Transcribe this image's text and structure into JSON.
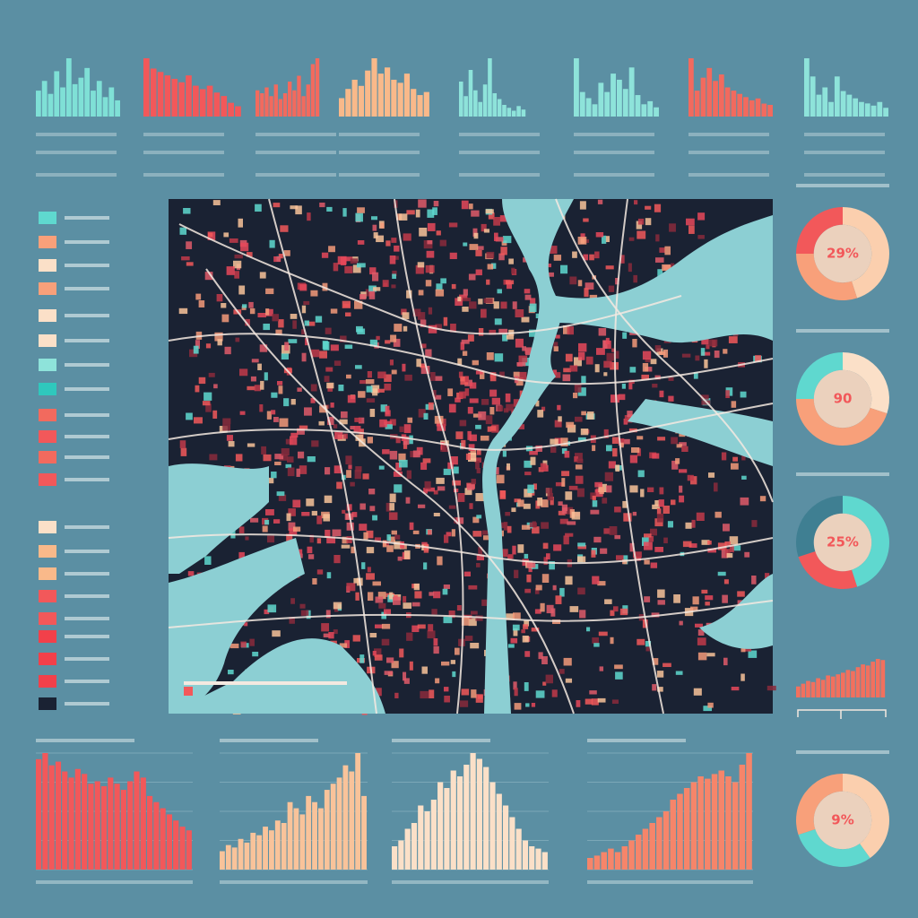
{
  "chart_data": [
    {
      "type": "bar",
      "color": "#7fe0d6",
      "values": [
        40,
        55,
        35,
        70,
        45,
        90,
        50,
        60,
        75,
        40,
        55,
        30,
        45,
        25
      ]
    },
    {
      "type": "bar",
      "color": "#f2585a",
      "values": [
        85,
        70,
        65,
        60,
        55,
        50,
        60,
        45,
        40,
        45,
        35,
        30,
        20,
        15
      ]
    },
    {
      "type": "bar",
      "color": "#f26a5e",
      "values": [
        45,
        40,
        50,
        35,
        55,
        30,
        40,
        60,
        45,
        70,
        35,
        55,
        90,
        100
      ]
    },
    {
      "type": "bar",
      "color": "#f9b98a",
      "values": [
        30,
        45,
        60,
        50,
        75,
        95,
        70,
        80,
        60,
        55,
        70,
        45,
        35,
        40
      ]
    },
    {
      "type": "bar",
      "color": "#8ee3da",
      "values": [
        60,
        35,
        80,
        45,
        25,
        55,
        100,
        40,
        30,
        20,
        15,
        10,
        18,
        12
      ]
    },
    {
      "type": "bar",
      "color": "#8ee3da",
      "values": [
        95,
        40,
        30,
        20,
        55,
        40,
        70,
        60,
        45,
        80,
        35,
        20,
        25,
        15
      ]
    },
    {
      "type": "bar",
      "color": "#f26a5e",
      "values": [
        90,
        40,
        60,
        75,
        55,
        65,
        45,
        40,
        35,
        30,
        25,
        28,
        20,
        18
      ]
    },
    {
      "type": "bar",
      "color": "#8ee3da",
      "values": [
        80,
        55,
        30,
        40,
        20,
        55,
        35,
        30,
        25,
        20,
        18,
        15,
        20,
        12
      ]
    },
    {
      "type": "pie",
      "center_label": "29%",
      "values": [
        45,
        30,
        25
      ],
      "colors": [
        "#fbcfae",
        "#f8a07a",
        "#f2585a"
      ]
    },
    {
      "type": "pie",
      "center_label": "90",
      "values": [
        30,
        45,
        25
      ],
      "colors": [
        "#fbe0c8",
        "#f8a07a",
        "#5fd8cf"
      ]
    },
    {
      "type": "pie",
      "center_label": "25%",
      "values": [
        45,
        25,
        30
      ],
      "colors": [
        "#5fd8cf",
        "#f2585a",
        "#3f7f92"
      ]
    },
    {
      "type": "pie",
      "center_label": "9%",
      "values": [
        40,
        30,
        30
      ],
      "colors": [
        "#fbcfae",
        "#5fd8cf",
        "#f8a07a"
      ]
    },
    {
      "type": "bar",
      "color": "#f2585a",
      "values": [
        90,
        95,
        85,
        88,
        80,
        75,
        82,
        78,
        70,
        72,
        68,
        75,
        70,
        65,
        72,
        80,
        75,
        60,
        55,
        50,
        45,
        40,
        35,
        32
      ]
    },
    {
      "type": "bar",
      "color": "#f9c39a",
      "values": [
        15,
        20,
        18,
        25,
        22,
        30,
        28,
        35,
        32,
        40,
        38,
        55,
        50,
        45,
        60,
        55,
        50,
        65,
        70,
        75,
        85,
        80,
        95,
        60
      ]
    },
    {
      "type": "bar",
      "color": "#fbe0c8",
      "values": [
        20,
        25,
        35,
        40,
        55,
        50,
        60,
        75,
        70,
        85,
        80,
        90,
        100,
        95,
        88,
        75,
        65,
        55,
        45,
        35,
        25,
        20,
        18,
        15
      ]
    },
    {
      "type": "bar",
      "color": "#f6856a",
      "values": [
        10,
        12,
        15,
        18,
        15,
        20,
        25,
        30,
        35,
        40,
        45,
        50,
        60,
        65,
        70,
        75,
        80,
        78,
        82,
        85,
        80,
        75,
        90,
        100
      ]
    },
    {
      "type": "bar",
      "color": "#f2705e",
      "values": [
        20,
        25,
        30,
        28,
        35,
        32,
        40,
        38,
        42,
        45,
        50,
        48,
        55,
        60,
        58,
        65,
        70,
        68
      ]
    }
  ]
}
